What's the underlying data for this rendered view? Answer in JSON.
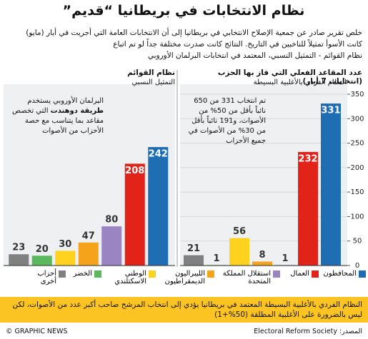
{
  "title": "نظام الانتخابات في بريطانيا “قديم”",
  "subtitle": [
    "خلص تقرير صادر عن جمعية الإصلاح الانتخابي في بريطانيا إلى أن الانتخابات العامة التي أجريت في أيار (مايو)",
    "كانت الأسوأ تمثيلاً للناخبين في التاريخ. النتائج كانت صدرت مختلفة جداً لو تم اتباع",
    "نظام القوائم - التمثيل النسبي، المعتمد في انتخابات البرلمان الأوروبي"
  ],
  "legend": [
    {
      "name": "المحافظون",
      "color": "#1f6db3"
    },
    {
      "name": "العمال",
      "color": "#e2231a"
    },
    {
      "name": "استقلال المملكة المتحدة",
      "color": "#9a84c2"
    },
    {
      "name": "الليبراليون الديمقراطيون",
      "color": "#f5a31a"
    },
    {
      "name": "الوطني الاسكتلندي",
      "color": "#ffd21f"
    },
    {
      "name": "الخضر",
      "color": "#5cb85c"
    },
    {
      "name": "أحزاب أخرى",
      "color": "#808080"
    }
  ],
  "note": "النظام الفردي بالأغلبية البسيطة المعتمد في بريطانيا يؤدي إلى انتخاب المرشح صاحب أكبر عدد من الأصوات، لكن ليس بالضرورة على الأغلبية المطلقة (50%+1)",
  "source": "المصدر: Electoral Reform Society",
  "credit": "© GRAPHIC NEWS",
  "chart_data": [
    {
      "type": "bar",
      "title": "نظام القوائم",
      "subtitle": "التمثيل النسبي",
      "annotation": [
        "البرلمان الأوروبي يستخدم",
        "طريقة دوهندت",
        "التي تخصص مقاعد بما يتناسب مع حصة الأحزاب من الأصوات"
      ],
      "values": [
        23,
        20,
        30,
        47,
        80,
        208,
        242
      ],
      "ylim": [
        0,
        350
      ],
      "grid": false
    },
    {
      "type": "bar",
      "title": "عدد المقاعد الفعلي التي فاز بها الحزب (انتخابات 7 أيار)",
      "subtitle": "النظام الفردي بالأغلبية البسيطة",
      "annotation": [
        "تم انتخاب 331 من 650 نائباً بأقل من 50% من الأصوات، و191 نائباً بأقل من 30% من الأصوات في جميع الأحزاب"
      ],
      "values": [
        21,
        1,
        56,
        8,
        1,
        232,
        331
      ],
      "ylim": [
        0,
        350
      ],
      "yticks": [
        0,
        50,
        100,
        150,
        200,
        250,
        300,
        350
      ],
      "grid": true
    }
  ]
}
